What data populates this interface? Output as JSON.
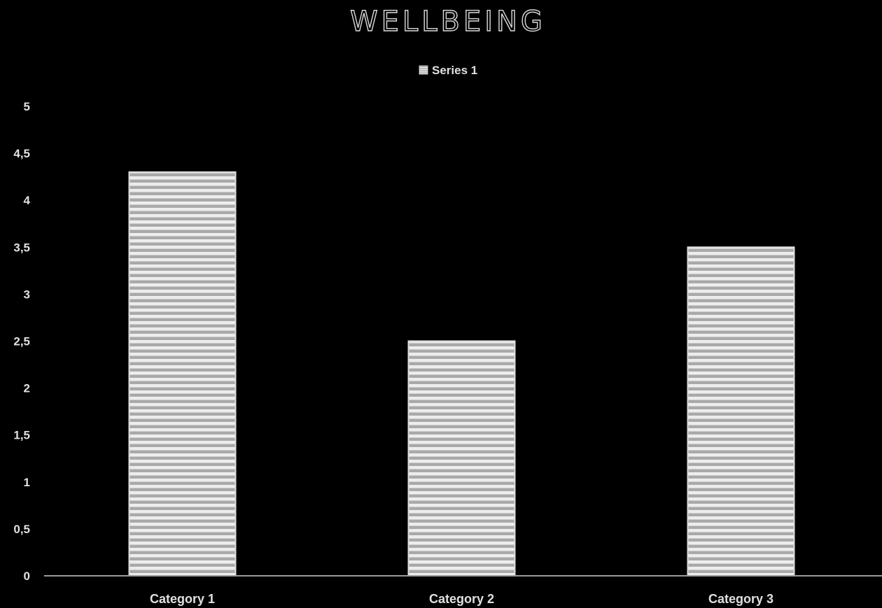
{
  "chart_data": {
    "type": "bar",
    "title": "WELLBEING",
    "categories": [
      "Category 1",
      "Category 2",
      "Category 3"
    ],
    "series": [
      {
        "name": "Series 1",
        "values": [
          4.3,
          2.5,
          3.5
        ]
      }
    ],
    "ylim": [
      0,
      5
    ],
    "yticks": [
      "0",
      "0,5",
      "1",
      "1,5",
      "2",
      "2,5",
      "3",
      "3,5",
      "4",
      "4,5",
      "5"
    ],
    "xlabel": "",
    "ylabel": "",
    "grid": false,
    "legend_position": "top-center",
    "colors": {
      "background": "#000000",
      "bar_fill": "#b8b8b8",
      "bar_stripe": "#efefef",
      "bar_border": "#dcdcdc",
      "axis": "#9a9a9a",
      "text": "#e0e0e0"
    }
  }
}
